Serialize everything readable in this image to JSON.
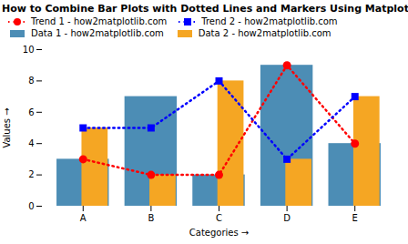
{
  "chart_data": {
    "type": "bar",
    "title": "How to Combine Bar Plots with Dotted Lines and Markers Using Matplotlib",
    "xlabel": "Categories",
    "ylabel": "Values",
    "categories": [
      "A",
      "B",
      "C",
      "D",
      "E"
    ],
    "series": [
      {
        "name": "Trend 1 - how2matplotlib.com",
        "type": "line",
        "color": "red",
        "line_style": "dotted",
        "marker": "circle",
        "values": [
          3,
          2,
          2,
          9,
          4
        ]
      },
      {
        "name": "Trend 2 - how2matplotlib.com",
        "type": "line",
        "color": "blue",
        "line_style": "dotted",
        "marker": "square",
        "values": [
          5,
          5,
          8,
          3,
          7
        ]
      },
      {
        "name": "Data 1 - how2matplotlib.com",
        "type": "bar",
        "color": "#4c8db5",
        "values": [
          3,
          7,
          2,
          9,
          4
        ]
      },
      {
        "name": "Data 2 - how2matplotlib.com",
        "type": "bar",
        "color": "#f5a623",
        "values": [
          5,
          2,
          8,
          3,
          7
        ]
      }
    ],
    "ylim": [
      0,
      10
    ],
    "yticks": [
      0,
      2,
      4,
      6,
      8,
      10
    ],
    "grid": false,
    "legend": "upper left"
  }
}
